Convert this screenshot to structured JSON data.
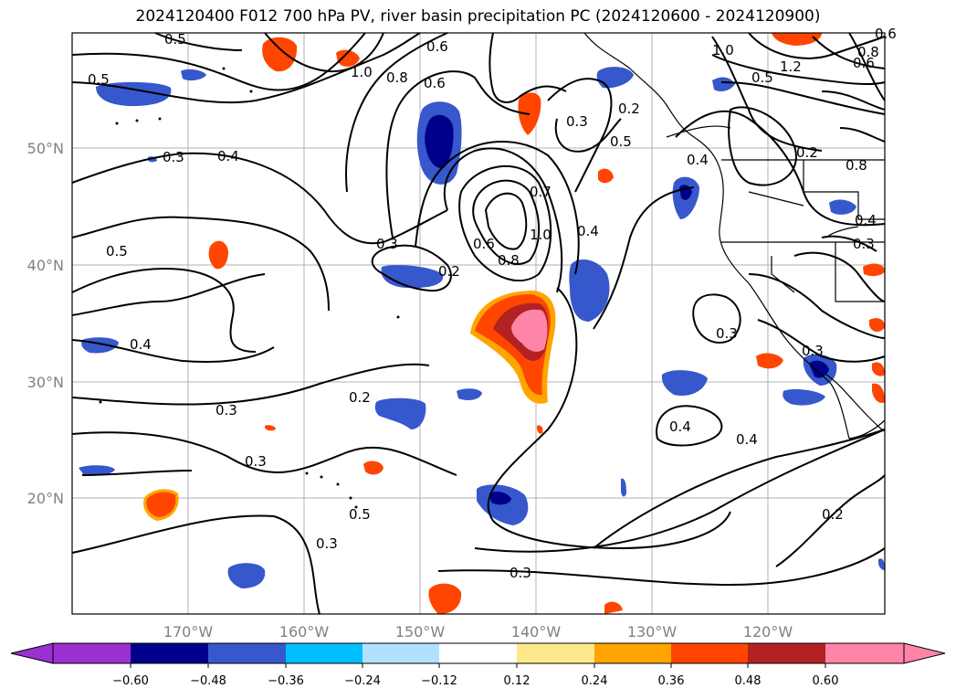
{
  "title": "2024120400 F012 700 hPa PV, river basin precipitation PC (2024120600 - 2024120900)",
  "map": {
    "lon_labels": [
      "170°W",
      "160°W",
      "150°W",
      "140°W",
      "130°W",
      "120°W"
    ],
    "lat_labels": [
      "50°N",
      "40°N",
      "30°N",
      "20°N"
    ],
    "contour_labels": [
      "0.5",
      "0.5",
      "1.0",
      "0.8",
      "0.6",
      "0.6",
      "0.3",
      "0.5",
      "1.0",
      "1.2",
      "0.8",
      "0.5",
      "0.3",
      "0.4",
      "0.7",
      "1.0",
      "0.4",
      "0.4",
      "0.8",
      "0.5",
      "0.3",
      "0.2",
      "0.6",
      "0.8",
      "0.4",
      "0.4",
      "0.3",
      "0.3",
      "0.2",
      "0.3",
      "0.5",
      "0.4",
      "0.3",
      "0.3",
      "0.3",
      "0.2",
      "0.2",
      "0.2",
      "0.4",
      "0.3",
      "0.6",
      "0.6"
    ]
  },
  "colorbar": {
    "tick_labels": [
      "−0.60",
      "−0.48",
      "−0.36",
      "−0.24",
      "−0.12",
      "0.12",
      "0.24",
      "0.36",
      "0.48",
      "0.60"
    ],
    "colors": [
      "#9b30d0",
      "#00008b",
      "#3658cc",
      "#00bfff",
      "#b0e2ff",
      "#ffffff",
      "#ffe88a",
      "#ffa500",
      "#ff4500",
      "#b22222",
      "#ff85a8"
    ]
  }
}
